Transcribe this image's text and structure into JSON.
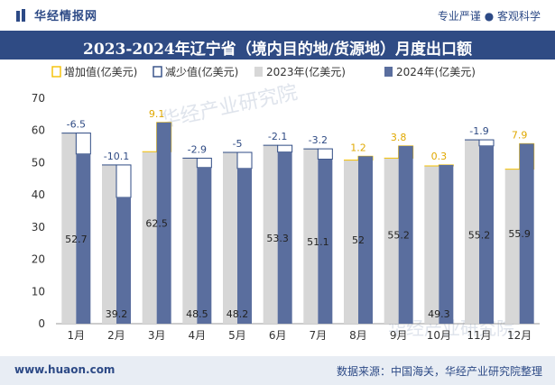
{
  "header": {
    "brand": "华经情报网",
    "tagline": "专业严谨 ● 客观科学",
    "title": "2023-2024年辽宁省（境内目的地/货源地）月度出口额"
  },
  "footer": {
    "website": "www.huaon.com",
    "source": "数据来源：中国海关，华经产业研究院整理"
  },
  "watermark": "华经产业研究院",
  "colors": {
    "bar2023": "#d7d7d7",
    "bar2024": "#5a6e9e",
    "increase": "#f5c000",
    "decrease": "#2f4b84",
    "increaseText": "#e0a800",
    "decreaseText": "#2f4b84"
  },
  "chart_data": {
    "type": "bar",
    "categories": [
      "1月",
      "2月",
      "3月",
      "4月",
      "5月",
      "6月",
      "7月",
      "8月",
      "9月",
      "10月",
      "11月",
      "12月"
    ],
    "series": [
      {
        "name": "2023年(亿美元)",
        "values": [
          59.2,
          49.3,
          53.4,
          51.4,
          53.2,
          55.4,
          54.3,
          50.8,
          51.4,
          49.0,
          57.1,
          48.0
        ]
      },
      {
        "name": "2024年(亿美元)",
        "values": [
          52.7,
          39.2,
          62.5,
          48.5,
          48.2,
          53.3,
          51.1,
          52,
          55.2,
          49.3,
          55.2,
          55.9
        ]
      }
    ],
    "changes": [
      "-6.5",
      "-10.1",
      "9.1",
      "-2.9",
      "-5",
      "-2.1",
      "-3.2",
      "1.2",
      "3.8",
      "0.3",
      "-1.9",
      "7.9"
    ],
    "legend": [
      "增加值(亿美元)",
      "减少值(亿美元)",
      "2023年(亿美元)",
      "2024年(亿美元)"
    ],
    "data_labels_2024": [
      "52.7",
      "39.2",
      "62.5",
      "48.5",
      "48.2",
      "53.3",
      "51.1",
      "52",
      "55.2",
      "49.3",
      "55.2",
      "55.9"
    ],
    "yticks": [
      "0",
      "10",
      "20",
      "30",
      "40",
      "50",
      "60",
      "70"
    ],
    "ylim": [
      0,
      70
    ],
    "grid": false,
    "legend_position": "top-left"
  }
}
